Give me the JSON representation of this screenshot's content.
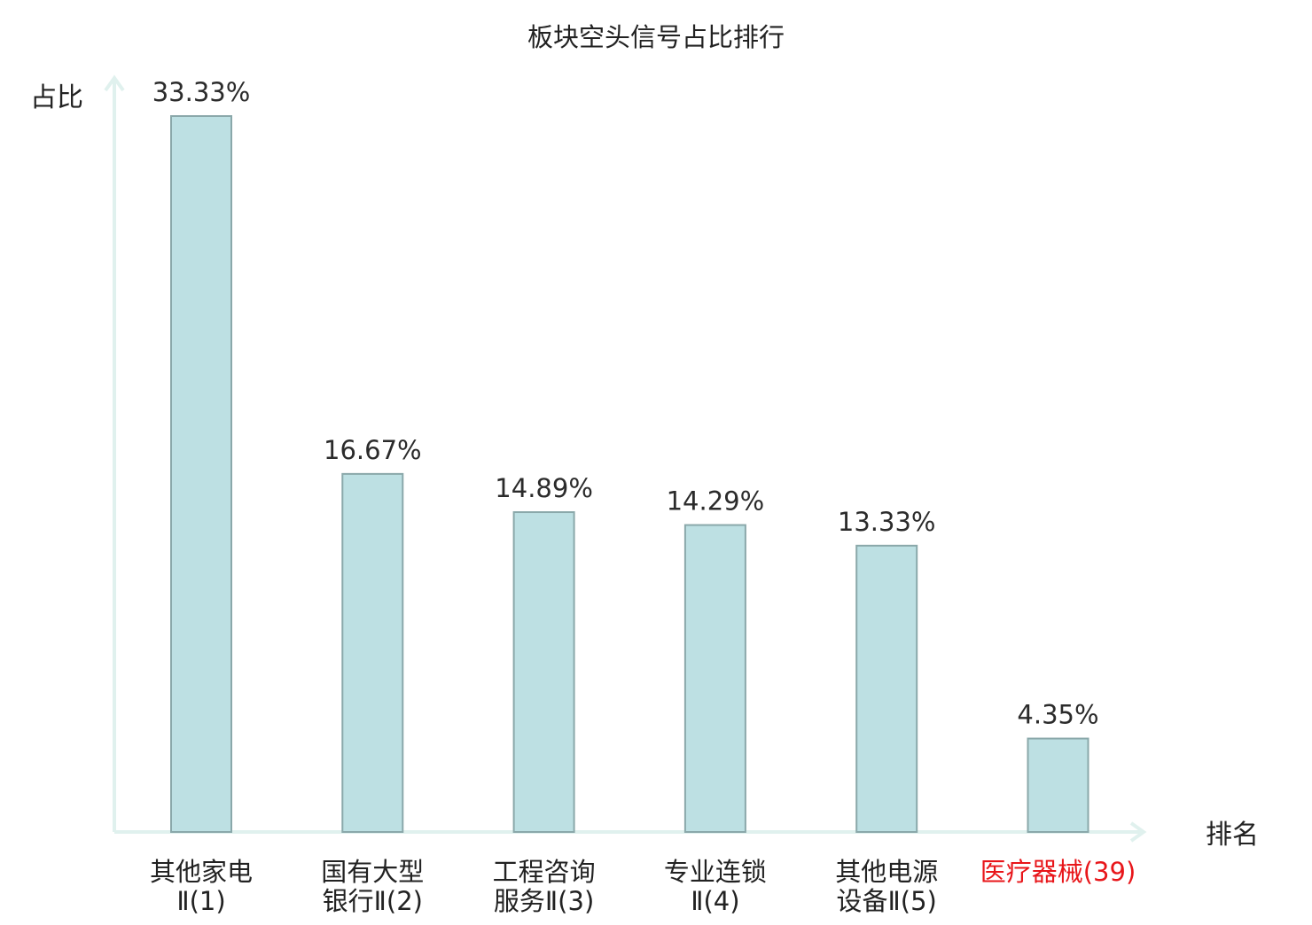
{
  "chart_data": {
    "type": "bar",
    "title": "板块空头信号占比排行",
    "ylabel": "占比",
    "xlabel": "排名",
    "grid": false,
    "ylim": [
      0,
      33.33
    ],
    "categories": [
      [
        "其他家电",
        "Ⅱ(1)"
      ],
      [
        "国有大型",
        "银行Ⅱ(2)"
      ],
      [
        "工程咨询",
        "服务Ⅱ(3)"
      ],
      [
        "专业连锁",
        "Ⅱ(4)"
      ],
      [
        "其他电源",
        "设备Ⅱ(5)"
      ],
      [
        "医疗器械(39)"
      ]
    ],
    "values": [
      33.33,
      16.67,
      14.89,
      14.29,
      13.33,
      4.35
    ],
    "value_labels": [
      "33.33%",
      "16.67%",
      "14.89%",
      "14.29%",
      "13.33%",
      "4.35%"
    ],
    "highlight_index": 5,
    "colors": {
      "bar_fill": "#bde0e3",
      "bar_stroke": "#8aa8aa",
      "axis": "#e0f1ee",
      "highlight_label": "#e8161a",
      "text": "#222222"
    }
  }
}
